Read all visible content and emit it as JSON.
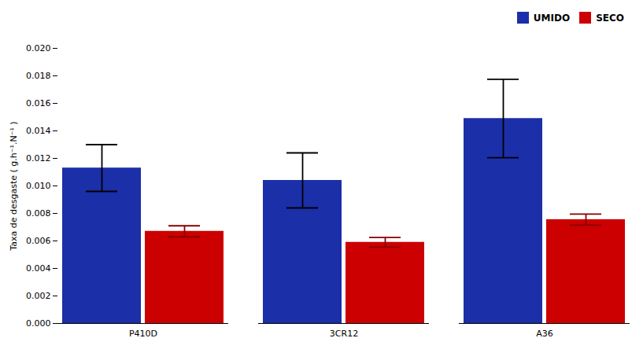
{
  "chart_data": {
    "type": "bar",
    "ylabel": "Taxa de desgaste ( g.h⁻¹.N⁻¹ )",
    "categories": [
      "P410D",
      "3CR12",
      "A36"
    ],
    "series": [
      {
        "name": "UMIDO",
        "color": "#1B2FA8",
        "values": [
          0.0113,
          0.0104,
          0.0149
        ],
        "errors": [
          0.0017,
          0.002,
          0.00285
        ]
      },
      {
        "name": "SECO",
        "color": "#CC0000",
        "values": [
          0.0067,
          0.0059,
          0.00755
        ],
        "errors": [
          0.0004,
          0.00035,
          0.0004
        ]
      }
    ],
    "ylim": [
      0.0,
      0.02
    ],
    "yticks": [
      {
        "value": 0,
        "label": "0.000"
      },
      0.002,
      0.004,
      0.006,
      0.008,
      {
        "value": 0.01,
        "label": "0.010"
      },
      0.012,
      0.014,
      0.016,
      0.018,
      {
        "value": 0.02,
        "label": "0.020"
      }
    ],
    "grid": false,
    "legend": "upper right"
  }
}
